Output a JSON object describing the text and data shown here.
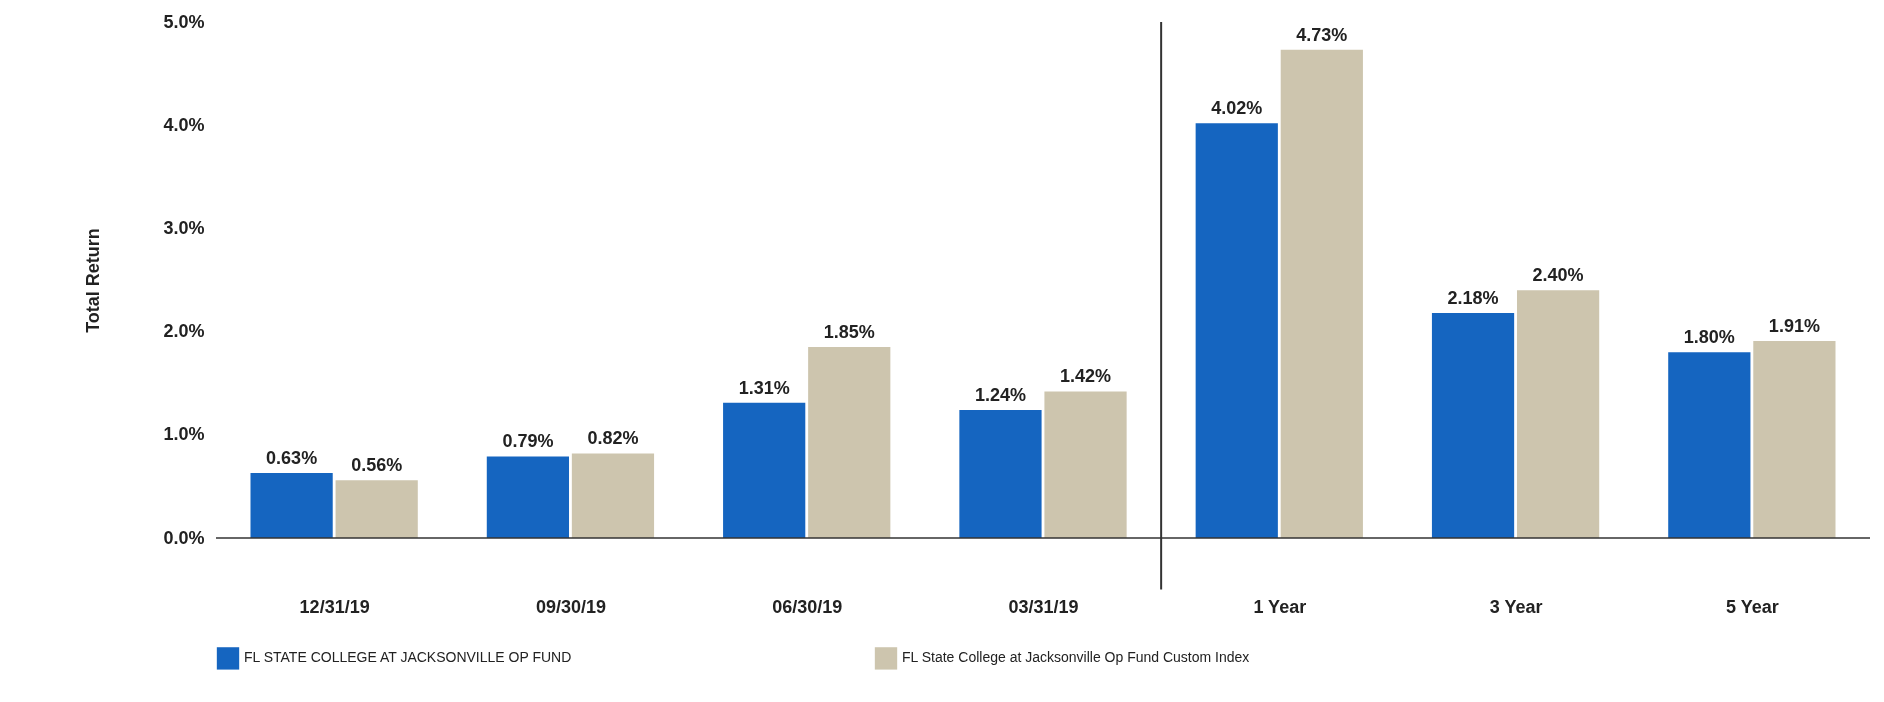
{
  "chart_data": {
    "type": "bar",
    "ylabel": "Total Return",
    "categories": [
      "12/31/19",
      "09/30/19",
      "06/30/19",
      "03/31/19",
      "1 Year",
      "3 Year",
      "5 Year"
    ],
    "series": [
      {
        "name": "FL STATE COLLEGE AT JACKSONVILLE OP FUND",
        "color": "#1565c0",
        "values": [
          0.63,
          0.79,
          1.31,
          1.24,
          4.02,
          2.18,
          1.8
        ],
        "value_labels": [
          "0.63%",
          "0.79%",
          "1.31%",
          "1.24%",
          "4.02%",
          "2.18%",
          "1.80%"
        ]
      },
      {
        "name": "FL State College at Jacksonville Op Fund Custom Index",
        "color": "#cdc5ae",
        "values": [
          0.56,
          0.82,
          1.85,
          1.42,
          4.73,
          2.4,
          1.91
        ],
        "value_labels": [
          "0.56%",
          "0.82%",
          "1.85%",
          "1.42%",
          "4.73%",
          "2.40%",
          "1.91%"
        ]
      }
    ],
    "ylim": [
      0,
      5
    ],
    "yticks": [
      {
        "value": 0,
        "label": "0.0%"
      },
      {
        "value": 1,
        "label": "1.0%"
      },
      {
        "value": 2,
        "label": "2.0%"
      },
      {
        "value": 3,
        "label": "3.0%"
      },
      {
        "value": 4,
        "label": "4.0%"
      },
      {
        "value": 5,
        "label": "5.0%"
      }
    ],
    "grid": false,
    "legend": "bottom"
  }
}
